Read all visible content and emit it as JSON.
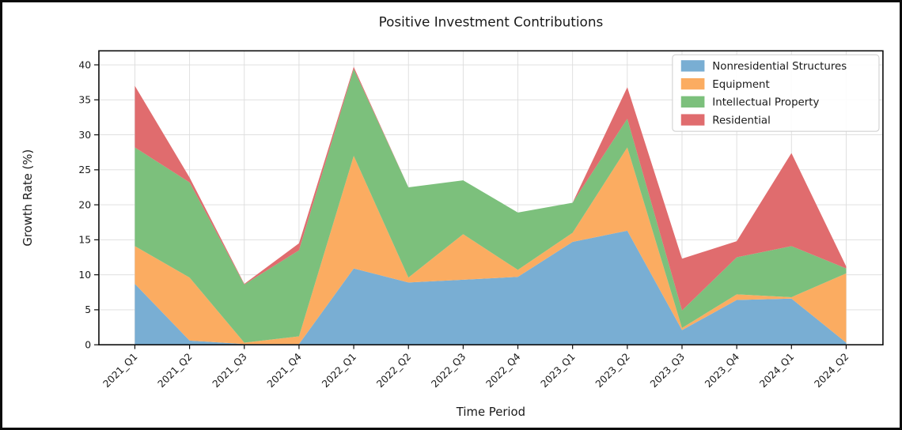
{
  "chart_data": {
    "type": "area",
    "stacked": true,
    "title": "Positive Investment Contributions",
    "xlabel": "Time Period",
    "ylabel": "Growth Rate (%)",
    "categories": [
      "2021_Q1",
      "2021_Q2",
      "2021_Q3",
      "2021_Q4",
      "2022_Q1",
      "2022_Q2",
      "2022_Q3",
      "2022_Q4",
      "2023_Q1",
      "2023_Q2",
      "2023_Q3",
      "2023_Q4",
      "2024_Q1",
      "2024_Q2"
    ],
    "series": [
      {
        "name": "Nonresidential Structures",
        "color": "#79aed3",
        "values": [
          8.7,
          0.6,
          0.1,
          0.1,
          10.9,
          8.9,
          9.3,
          9.7,
          14.7,
          16.3,
          2.1,
          6.4,
          6.6,
          0.3
        ]
      },
      {
        "name": "Equipment",
        "color": "#fbac61",
        "values": [
          5.4,
          9.0,
          0.2,
          1.1,
          16.1,
          0.7,
          6.5,
          1.0,
          1.3,
          11.9,
          0.3,
          0.8,
          0.2,
          9.9
        ]
      },
      {
        "name": "Intellectual Property",
        "color": "#7cc07c",
        "values": [
          14.1,
          13.6,
          8.3,
          12.3,
          12.4,
          12.9,
          7.7,
          8.2,
          4.3,
          4.1,
          2.5,
          5.3,
          7.3,
          0.7
        ]
      },
      {
        "name": "Residential",
        "color": "#e06c6e",
        "values": [
          8.8,
          0.7,
          0.1,
          1.0,
          0.3,
          0.0,
          0.0,
          0.0,
          0.0,
          4.5,
          7.4,
          2.3,
          13.3,
          0.3
        ]
      }
    ],
    "ylim": [
      0,
      42
    ],
    "yticks": [
      0,
      5,
      10,
      15,
      20,
      25,
      30,
      35,
      40
    ],
    "grid": true,
    "legend_position": "upper right",
    "colors": {
      "grid": "#dcdcdc",
      "spine": "#0a0a0a",
      "text": "#1a1a1a",
      "legend_border": "#cccccc",
      "legend_background": "#ffffff"
    }
  }
}
